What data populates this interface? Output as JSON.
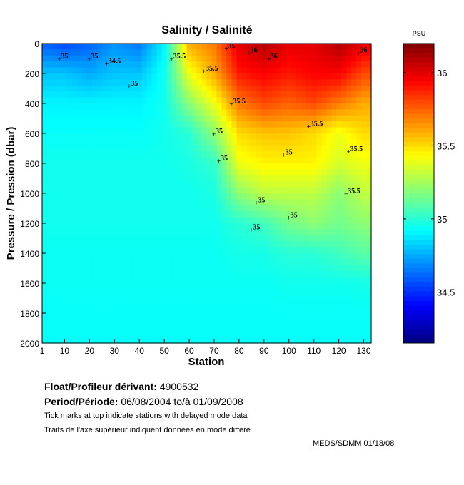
{
  "chart_data": {
    "type": "heatmap",
    "title": "Salinity / Salinité",
    "xlabel": "Station",
    "ylabel": "Pressure / Pression (dbar)",
    "colorbar_label": "PSU",
    "xlim": [
      1,
      133
    ],
    "ylim": [
      2000,
      0
    ],
    "clim": [
      34.15,
      36.2
    ],
    "colormap": "jet",
    "xticks": [
      1,
      10,
      20,
      30,
      40,
      50,
      60,
      70,
      80,
      90,
      100,
      110,
      120,
      130
    ],
    "yticks": [
      0,
      200,
      400,
      600,
      800,
      1000,
      1200,
      1400,
      1600,
      1800,
      2000
    ],
    "colorbar_ticks": [
      34.5,
      35,
      35.5,
      36
    ],
    "grid_stations": [
      1,
      10,
      20,
      30,
      40,
      50,
      60,
      70,
      80,
      90,
      100,
      110,
      120,
      130
    ],
    "grid_pressures": [
      0,
      200,
      400,
      600,
      800,
      1000,
      1200,
      1400,
      1600,
      1800,
      2000
    ],
    "values": [
      [
        34.6,
        34.8,
        34.9,
        34.93,
        34.95,
        34.95,
        34.95,
        34.94,
        34.94,
        34.93,
        34.93
      ],
      [
        34.55,
        34.8,
        34.9,
        34.93,
        34.95,
        34.95,
        34.95,
        34.94,
        34.94,
        34.93,
        34.93
      ],
      [
        34.6,
        34.75,
        34.9,
        34.93,
        34.95,
        34.95,
        34.95,
        34.94,
        34.94,
        34.93,
        34.93
      ],
      [
        34.7,
        34.8,
        34.9,
        34.93,
        34.95,
        34.95,
        34.95,
        34.94,
        34.94,
        34.93,
        34.93
      ],
      [
        34.65,
        34.8,
        34.9,
        34.93,
        34.95,
        34.95,
        34.95,
        34.94,
        34.94,
        34.93,
        34.93
      ],
      [
        34.9,
        34.95,
        34.95,
        34.95,
        34.95,
        34.95,
        34.95,
        34.94,
        34.94,
        34.93,
        34.93
      ],
      [
        35.6,
        35.4,
        35.2,
        35.0,
        34.97,
        34.95,
        34.95,
        34.94,
        34.94,
        34.93,
        34.93
      ],
      [
        35.7,
        35.6,
        35.4,
        35.2,
        35.02,
        34.97,
        34.95,
        34.94,
        34.94,
        34.93,
        34.93
      ],
      [
        36.0,
        35.9,
        35.7,
        35.5,
        35.4,
        35.2,
        35.0,
        34.96,
        34.94,
        34.93,
        34.93
      ],
      [
        36.1,
        35.95,
        35.8,
        35.55,
        35.45,
        35.3,
        35.05,
        34.96,
        34.94,
        34.93,
        34.93
      ],
      [
        36.0,
        35.9,
        35.75,
        35.55,
        35.45,
        35.3,
        35.15,
        35.0,
        34.95,
        34.93,
        34.93
      ],
      [
        36.0,
        35.95,
        35.8,
        35.5,
        35.45,
        35.3,
        35.2,
        35.0,
        34.95,
        34.93,
        34.93
      ],
      [
        36.1,
        35.95,
        35.7,
        35.4,
        35.35,
        35.2,
        35.15,
        35.05,
        34.95,
        34.93,
        34.93
      ],
      [
        36.0,
        35.8,
        35.6,
        35.5,
        35.4,
        35.3,
        35.2,
        35.1,
        34.96,
        34.93,
        34.93
      ]
    ],
    "contour_labels": [
      {
        "text": "35",
        "station": 8,
        "pressure": 100
      },
      {
        "text": "35",
        "station": 20,
        "pressure": 100
      },
      {
        "text": "34.5",
        "station": 27,
        "pressure": 130
      },
      {
        "text": "35",
        "station": 36,
        "pressure": 280
      },
      {
        "text": "35.5",
        "station": 53,
        "pressure": 100
      },
      {
        "text": "35.5",
        "station": 66,
        "pressure": 180
      },
      {
        "text": "35",
        "station": 75,
        "pressure": 30
      },
      {
        "text": "36",
        "station": 84,
        "pressure": 60
      },
      {
        "text": "36",
        "station": 92,
        "pressure": 100
      },
      {
        "text": "35.5",
        "station": 77,
        "pressure": 400
      },
      {
        "text": "35",
        "station": 70,
        "pressure": 600
      },
      {
        "text": "35",
        "station": 72,
        "pressure": 780
      },
      {
        "text": "35.5",
        "station": 108,
        "pressure": 550
      },
      {
        "text": "35.5",
        "station": 124,
        "pressure": 720
      },
      {
        "text": "35",
        "station": 98,
        "pressure": 740
      },
      {
        "text": "35",
        "station": 87,
        "pressure": 1060
      },
      {
        "text": "35",
        "station": 100,
        "pressure": 1160
      },
      {
        "text": "35",
        "station": 85,
        "pressure": 1240
      },
      {
        "text": "35.5",
        "station": 123,
        "pressure": 1000
      },
      {
        "text": "36",
        "station": 128,
        "pressure": 60
      }
    ]
  },
  "info": {
    "float_label": "Float/Profileur dérivant:",
    "float_id": "4900532",
    "period_label": "Period/Période:",
    "period_start": "06/08/2004",
    "period_to": "to/à",
    "period_end": "01/09/2008",
    "note_en": "Tick marks at top indicate stations with delayed mode data",
    "note_fr": "Traits de l'axe supérieur indiquent données en mode différé",
    "credit": "MEDS/SDMM  01/18/08"
  }
}
